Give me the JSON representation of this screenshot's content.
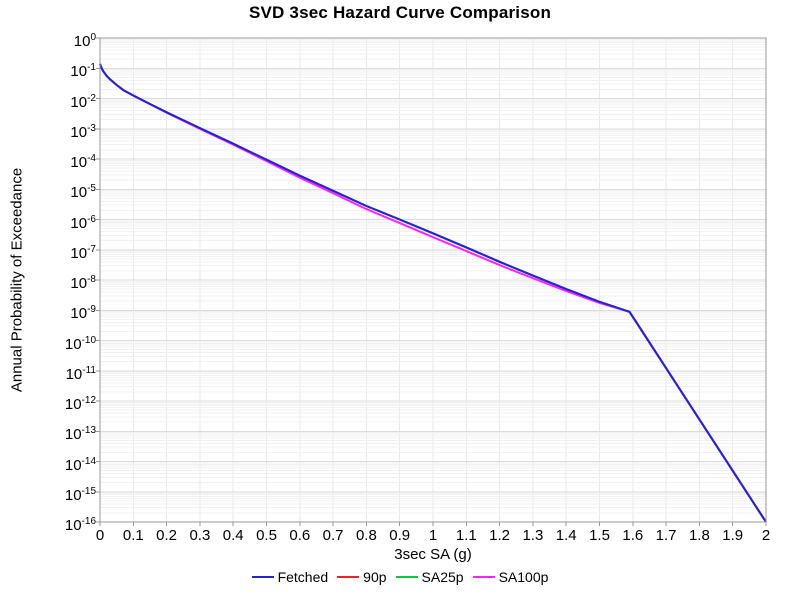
{
  "chart_data": {
    "type": "line",
    "title": "SVD 3sec Hazard Curve Comparison",
    "xlabel": "3sec SA (g)",
    "ylabel": "Annual Probability of Exceedance",
    "grid": true,
    "legend_position": "bottom",
    "x_axis": {
      "min": 0,
      "max": 2,
      "tick_step": 0.1,
      "tick_labels": [
        "0",
        "0.1",
        "0.2",
        "0.3",
        "0.4",
        "0.5",
        "0.6",
        "0.7",
        "0.8",
        "0.9",
        "1",
        "1.1",
        "1.2",
        "1.3",
        "1.4",
        "1.5",
        "1.6",
        "1.7",
        "1.8",
        "1.9",
        "2"
      ]
    },
    "y_axis": {
      "scale": "log",
      "max_exp": 0,
      "min_exp": -16,
      "tick_exponents": [
        0,
        -1,
        -2,
        -3,
        -4,
        -5,
        -6,
        -7,
        -8,
        -9,
        -10,
        -11,
        -12,
        -13,
        -14,
        -15,
        -16
      ]
    },
    "colors": {
      "grid_minor": "#f1f1f1",
      "grid_major": "#dcdcdc",
      "axis_border": "#999999"
    },
    "series": [
      {
        "name": "Fetched",
        "color": "#2222dd",
        "points": [
          [
            0,
            0.14
          ],
          [
            0.005,
            0.1
          ],
          [
            0.01,
            0.079
          ],
          [
            0.02,
            0.056
          ],
          [
            0.03,
            0.043
          ],
          [
            0.05,
            0.028
          ],
          [
            0.07,
            0.019
          ],
          [
            0.1,
            0.0126
          ],
          [
            0.15,
            0.0066
          ],
          [
            0.2,
            0.0035
          ],
          [
            0.3,
            0.00105
          ],
          [
            0.4,
            0.00032
          ],
          [
            0.5,
            9.5e-05
          ],
          [
            0.6,
            2.8e-05
          ],
          [
            0.7,
            8.9e-06
          ],
          [
            0.8,
            2.8e-06
          ],
          [
            0.9,
            1e-06
          ],
          [
            1,
            3.5e-07
          ],
          [
            1.1,
            1.2e-07
          ],
          [
            1.2,
            4e-08
          ],
          [
            1.3,
            1.4e-08
          ],
          [
            1.4,
            5e-09
          ],
          [
            1.5,
            1.9e-09
          ],
          [
            1.59,
            8.9e-10
          ],
          [
            2,
            1e-16
          ]
        ]
      },
      {
        "name": "90p",
        "color": "#ee2222",
        "points": [
          [
            0,
            0.14
          ],
          [
            0.005,
            0.1
          ],
          [
            0.01,
            0.079
          ],
          [
            0.02,
            0.056
          ],
          [
            0.03,
            0.043
          ],
          [
            0.05,
            0.028
          ],
          [
            0.07,
            0.019
          ],
          [
            0.1,
            0.0126
          ],
          [
            0.15,
            0.0066
          ],
          [
            0.2,
            0.0035
          ],
          [
            0.3,
            0.00105
          ],
          [
            0.4,
            0.00032
          ],
          [
            0.5,
            9.5e-05
          ],
          [
            0.6,
            2.8e-05
          ],
          [
            0.7,
            8.9e-06
          ],
          [
            0.8,
            2.8e-06
          ],
          [
            0.9,
            1e-06
          ],
          [
            1,
            3.5e-07
          ],
          [
            1.1,
            1.2e-07
          ],
          [
            1.2,
            4e-08
          ],
          [
            1.3,
            1.4e-08
          ],
          [
            1.4,
            5e-09
          ],
          [
            1.5,
            1.9e-09
          ],
          [
            1.59,
            8.9e-10
          ],
          [
            2,
            1e-16
          ]
        ]
      },
      {
        "name": "SA25p",
        "color": "#00cc44",
        "points": [
          [
            0,
            0.14
          ],
          [
            0.005,
            0.1
          ],
          [
            0.01,
            0.079
          ],
          [
            0.02,
            0.056
          ],
          [
            0.03,
            0.043
          ],
          [
            0.05,
            0.028
          ],
          [
            0.07,
            0.019
          ],
          [
            0.1,
            0.0126
          ],
          [
            0.15,
            0.0066
          ],
          [
            0.2,
            0.0035
          ],
          [
            0.3,
            0.00105
          ],
          [
            0.4,
            0.00032
          ],
          [
            0.5,
            9.5e-05
          ],
          [
            0.6,
            2.8e-05
          ],
          [
            0.7,
            8.9e-06
          ],
          [
            0.8,
            2.8e-06
          ],
          [
            0.9,
            1e-06
          ],
          [
            1,
            3.5e-07
          ],
          [
            1.1,
            1.2e-07
          ],
          [
            1.2,
            4e-08
          ],
          [
            1.3,
            1.4e-08
          ],
          [
            1.4,
            5e-09
          ],
          [
            1.5,
            1.9e-09
          ],
          [
            1.59,
            8.9e-10
          ],
          [
            2,
            1e-16
          ]
        ]
      },
      {
        "name": "SA100p",
        "color": "#ff22ff",
        "points": [
          [
            0,
            0.14
          ],
          [
            0.005,
            0.1
          ],
          [
            0.01,
            0.079
          ],
          [
            0.02,
            0.056
          ],
          [
            0.03,
            0.043
          ],
          [
            0.05,
            0.028
          ],
          [
            0.07,
            0.019
          ],
          [
            0.1,
            0.0126
          ],
          [
            0.15,
            0.0066
          ],
          [
            0.2,
            0.0034
          ],
          [
            0.3,
            0.001
          ],
          [
            0.4,
            0.0003
          ],
          [
            0.5,
            8.5e-05
          ],
          [
            0.6,
            2.4e-05
          ],
          [
            0.7,
            7.4e-06
          ],
          [
            0.8,
            2.2e-06
          ],
          [
            0.9,
            7.6e-07
          ],
          [
            1,
            2.6e-07
          ],
          [
            1.1,
            9e-08
          ],
          [
            1.2,
            3.1e-08
          ],
          [
            1.3,
            1.15e-08
          ],
          [
            1.4,
            4.3e-09
          ],
          [
            1.5,
            1.75e-09
          ],
          [
            1.59,
            8.9e-10
          ],
          [
            2,
            1e-16
          ]
        ]
      }
    ]
  }
}
